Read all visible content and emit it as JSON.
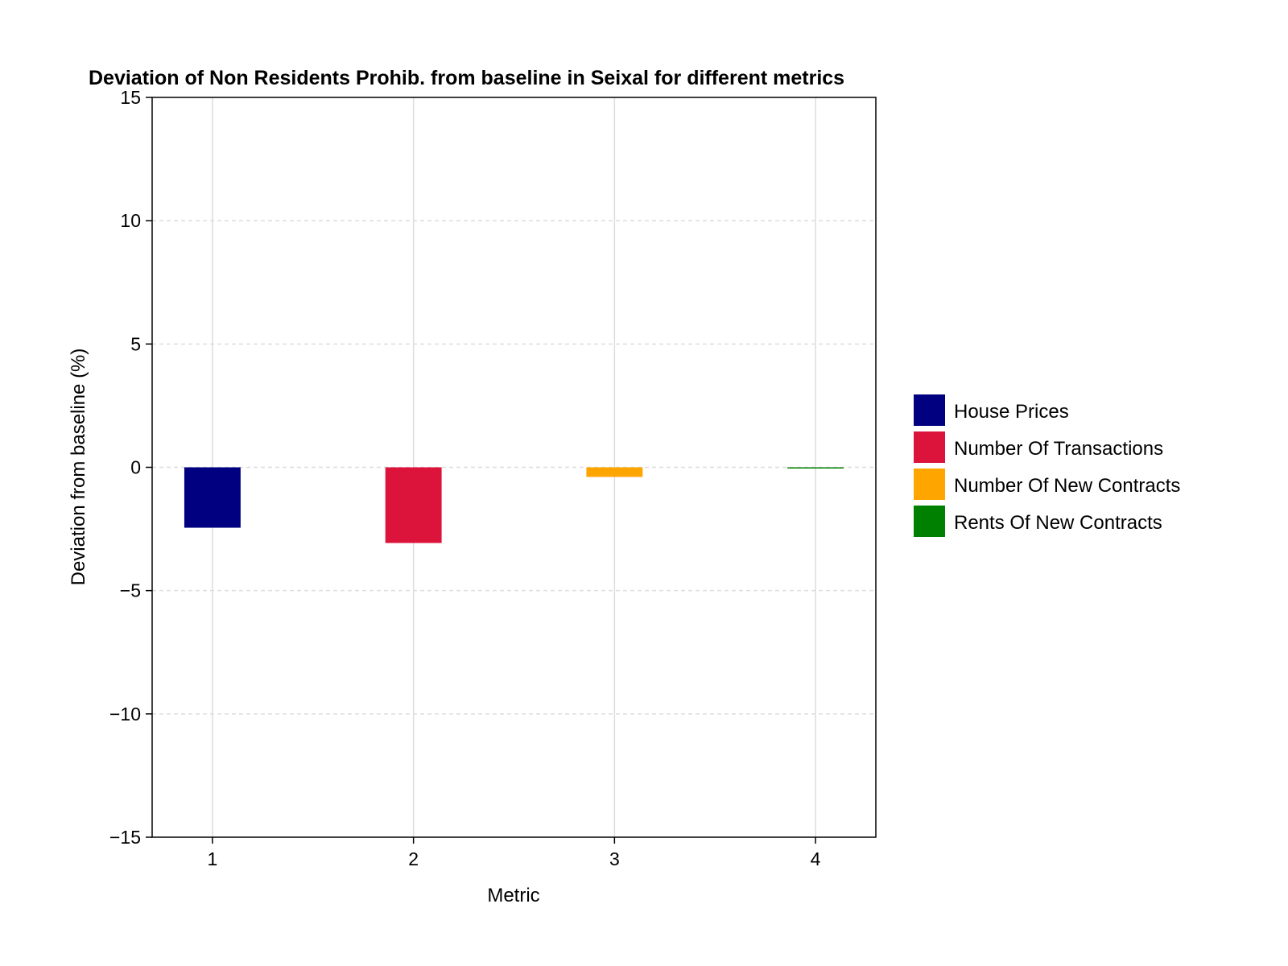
{
  "chart_data": {
    "type": "bar",
    "title": "Deviation of Non Residents Prohib. from baseline in Seixal for different metrics",
    "xlabel": "Metric",
    "ylabel": "Deviation from baseline (%)",
    "categories": [
      "1",
      "2",
      "3",
      "4"
    ],
    "x": [
      1,
      2,
      3,
      4
    ],
    "series": [
      {
        "name": "House Prices",
        "x": 1,
        "value": -2.45,
        "color": "#000080"
      },
      {
        "name": "Number Of Transactions",
        "x": 2,
        "value": -3.07,
        "color": "#DC143C"
      },
      {
        "name": "Number Of New Contracts",
        "x": 3,
        "value": -0.39,
        "color": "#FFA500"
      },
      {
        "name": "Rents Of New Contracts",
        "x": 4,
        "value": -0.05,
        "color": "#008000"
      }
    ],
    "ylim": [
      -15,
      15
    ],
    "yticks": [
      -15,
      -10,
      -5,
      0,
      5,
      10,
      15
    ],
    "ytick_labels": [
      "−15",
      "−10",
      "−5",
      "0",
      "5",
      "10",
      "15"
    ],
    "xlim": [
      0.7,
      4.3
    ],
    "xticks": [
      1,
      2,
      3,
      4
    ],
    "grid": true,
    "legend_position": "right"
  }
}
